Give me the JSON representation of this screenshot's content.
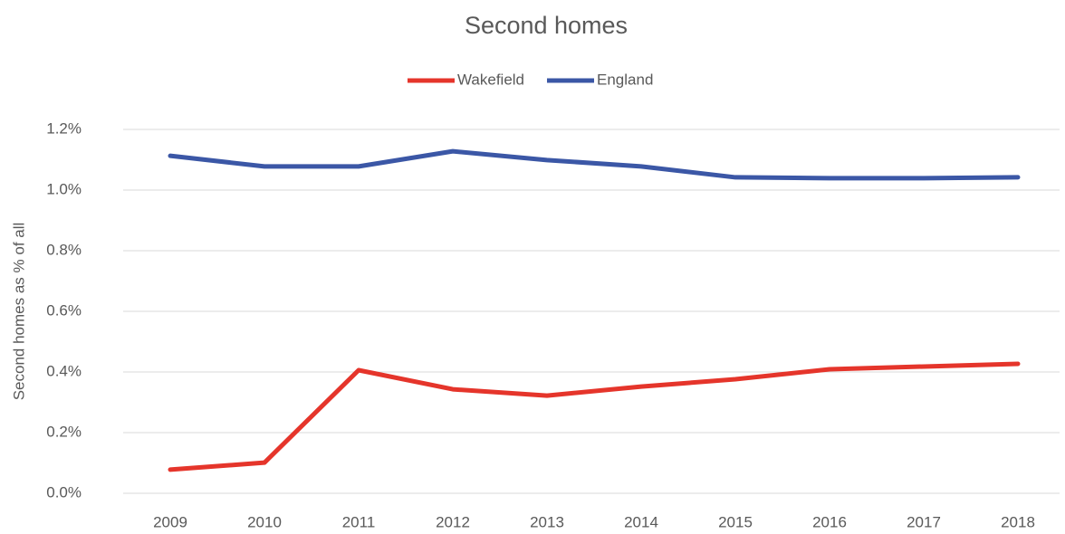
{
  "chart_data": {
    "type": "line",
    "title": "Second homes",
    "y_label": "Second homes as % of all",
    "categories": [
      "2009",
      "2010",
      "2011",
      "2012",
      "2013",
      "2014",
      "2015",
      "2016",
      "2017",
      "2018"
    ],
    "series": [
      {
        "name": "Wakefield",
        "color": "#e5352b",
        "values": [
          0.078,
          0.101,
          0.406,
          0.343,
          0.322,
          0.352,
          0.376,
          0.409,
          0.418,
          0.427
        ]
      },
      {
        "name": "England",
        "color": "#3b57a6",
        "values": [
          1.113,
          1.078,
          1.078,
          1.128,
          1.099,
          1.078,
          1.042,
          1.039,
          1.039,
          1.042
        ]
      }
    ],
    "ylim": [
      0,
      1.2
    ],
    "yticks": [
      {
        "value": 0,
        "label": "0.0%"
      },
      {
        "value": 0.2,
        "label": "0.2%"
      },
      {
        "value": 0.4,
        "label": "0.4%"
      },
      {
        "value": 0.6,
        "label": "0.6%"
      },
      {
        "value": 0.8,
        "label": "0.8%"
      },
      {
        "value": 1.0,
        "label": "1.0%"
      },
      {
        "value": 1.2,
        "label": "1.2%"
      }
    ],
    "grid": true,
    "legend": "top"
  }
}
